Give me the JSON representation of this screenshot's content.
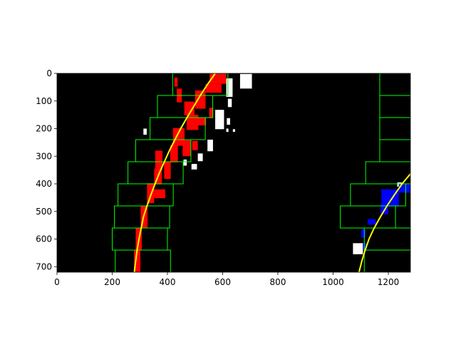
{
  "colors": {
    "background": "#000000",
    "left_pixels": "#ff0000",
    "right_pixels": "#0000ff",
    "noise": "#ffffff",
    "windows": "#00ff00",
    "fit_line": "#ffff00",
    "figure": "#ffffff"
  },
  "chart_data": {
    "type": "scatter",
    "title": "",
    "xlabel": "",
    "ylabel": "",
    "xlim": [
      0,
      1280
    ],
    "ylim": [
      720,
      0
    ],
    "y_inverted": true,
    "grid": false,
    "x_ticks": [
      0,
      200,
      400,
      600,
      800,
      1000,
      1200
    ],
    "y_ticks": [
      0,
      100,
      200,
      300,
      400,
      500,
      600,
      700
    ],
    "left_windows": [
      {
        "x0": 419,
        "x1": 619,
        "y0": 0,
        "y1": 80
      },
      {
        "x0": 364,
        "x1": 564,
        "y0": 80,
        "y1": 160
      },
      {
        "x0": 337,
        "x1": 537,
        "y0": 160,
        "y1": 240
      },
      {
        "x0": 285,
        "x1": 485,
        "y0": 240,
        "y1": 320
      },
      {
        "x0": 257,
        "x1": 457,
        "y0": 320,
        "y1": 400
      },
      {
        "x0": 221,
        "x1": 421,
        "y0": 400,
        "y1": 480
      },
      {
        "x0": 208,
        "x1": 408,
        "y0": 480,
        "y1": 560
      },
      {
        "x0": 200,
        "x1": 400,
        "y0": 560,
        "y1": 640
      },
      {
        "x0": 211,
        "x1": 411,
        "y0": 640,
        "y1": 720
      }
    ],
    "right_windows": [
      {
        "x0": 1169,
        "x1": 1369,
        "y0": 0,
        "y1": 80
      },
      {
        "x0": 1169,
        "x1": 1369,
        "y0": 80,
        "y1": 160
      },
      {
        "x0": 1169,
        "x1": 1369,
        "y0": 160,
        "y1": 240
      },
      {
        "x0": 1169,
        "x1": 1369,
        "y0": 240,
        "y1": 320
      },
      {
        "x0": 1118,
        "x1": 1318,
        "y0": 320,
        "y1": 400
      },
      {
        "x0": 1063,
        "x1": 1263,
        "y0": 400,
        "y1": 480
      },
      {
        "x0": 1026,
        "x1": 1226,
        "y0": 480,
        "y1": 560
      },
      {
        "x0": 1113,
        "x1": 1313,
        "y0": 560,
        "y1": 640
      },
      {
        "x0": 1113,
        "x1": 1313,
        "y0": 640,
        "y1": 720
      }
    ],
    "left_fit_curve": [
      {
        "x": 573,
        "y": 0
      },
      {
        "x": 545,
        "y": 40
      },
      {
        "x": 519,
        "y": 80
      },
      {
        "x": 495,
        "y": 120
      },
      {
        "x": 471,
        "y": 160
      },
      {
        "x": 448,
        "y": 200
      },
      {
        "x": 427,
        "y": 240
      },
      {
        "x": 407,
        "y": 280
      },
      {
        "x": 389,
        "y": 320
      },
      {
        "x": 371,
        "y": 360
      },
      {
        "x": 355,
        "y": 400
      },
      {
        "x": 340,
        "y": 440
      },
      {
        "x": 326,
        "y": 480
      },
      {
        "x": 313,
        "y": 520
      },
      {
        "x": 305,
        "y": 560
      },
      {
        "x": 297,
        "y": 600
      },
      {
        "x": 290,
        "y": 640
      },
      {
        "x": 285,
        "y": 680
      },
      {
        "x": 280,
        "y": 720
      }
    ],
    "right_fit_curve": [
      {
        "x": 1280,
        "y": 364
      },
      {
        "x": 1250,
        "y": 400
      },
      {
        "x": 1222,
        "y": 440
      },
      {
        "x": 1195,
        "y": 480
      },
      {
        "x": 1171,
        "y": 520
      },
      {
        "x": 1149,
        "y": 560
      },
      {
        "x": 1130,
        "y": 600
      },
      {
        "x": 1116,
        "y": 640
      },
      {
        "x": 1104,
        "y": 680
      },
      {
        "x": 1094,
        "y": 720
      }
    ],
    "left_lane_pixels": [
      {
        "x0": 553,
        "x1": 613,
        "y0": 0,
        "y1": 38
      },
      {
        "x0": 538,
        "x1": 596,
        "y0": 38,
        "y1": 70
      },
      {
        "x0": 425,
        "x1": 437,
        "y0": 15,
        "y1": 48
      },
      {
        "x0": 434,
        "x1": 452,
        "y0": 55,
        "y1": 105
      },
      {
        "x0": 500,
        "x1": 538,
        "y0": 62,
        "y1": 128
      },
      {
        "x0": 461,
        "x1": 498,
        "y0": 102,
        "y1": 152
      },
      {
        "x0": 551,
        "x1": 566,
        "y0": 125,
        "y1": 162
      },
      {
        "x0": 470,
        "x1": 512,
        "y0": 150,
        "y1": 205
      },
      {
        "x0": 510,
        "x1": 540,
        "y0": 160,
        "y1": 188
      },
      {
        "x0": 420,
        "x1": 462,
        "y0": 198,
        "y1": 262
      },
      {
        "x0": 455,
        "x1": 484,
        "y0": 242,
        "y1": 300
      },
      {
        "x0": 490,
        "x1": 510,
        "y0": 245,
        "y1": 278
      },
      {
        "x0": 410,
        "x1": 438,
        "y0": 260,
        "y1": 322
      },
      {
        "x0": 356,
        "x1": 382,
        "y0": 280,
        "y1": 350
      },
      {
        "x0": 388,
        "x1": 412,
        "y0": 320,
        "y1": 382
      },
      {
        "x0": 352,
        "x1": 380,
        "y0": 345,
        "y1": 402
      },
      {
        "x0": 326,
        "x1": 352,
        "y0": 398,
        "y1": 470
      },
      {
        "x0": 352,
        "x1": 392,
        "y0": 420,
        "y1": 452
      },
      {
        "x0": 303,
        "x1": 328,
        "y0": 480,
        "y1": 560
      },
      {
        "x0": 285,
        "x1": 307,
        "y0": 560,
        "y1": 640
      },
      {
        "x0": 279,
        "x1": 302,
        "y0": 640,
        "y1": 720
      }
    ],
    "right_lane_pixels": [
      {
        "x0": 1238,
        "x1": 1278,
        "y0": 402,
        "y1": 432
      },
      {
        "x0": 1175,
        "x1": 1238,
        "y0": 420,
        "y1": 482
      },
      {
        "x0": 1172,
        "x1": 1200,
        "y0": 472,
        "y1": 510
      },
      {
        "x0": 1125,
        "x1": 1155,
        "y0": 528,
        "y1": 548
      },
      {
        "x0": 1102,
        "x1": 1117,
        "y0": 565,
        "y1": 595
      },
      {
        "x0": 1108,
        "x1": 1122,
        "y0": 615,
        "y1": 640
      }
    ],
    "noise_pixels": [
      {
        "x0": 663,
        "x1": 706,
        "y0": 2,
        "y1": 55
      },
      {
        "x0": 613,
        "x1": 636,
        "y0": 18,
        "y1": 85
      },
      {
        "x0": 619,
        "x1": 633,
        "y0": 92,
        "y1": 122
      },
      {
        "x0": 573,
        "x1": 605,
        "y0": 132,
        "y1": 202
      },
      {
        "x0": 615,
        "x1": 627,
        "y0": 162,
        "y1": 186
      },
      {
        "x0": 613,
        "x1": 621,
        "y0": 200,
        "y1": 212
      },
      {
        "x0": 637,
        "x1": 645,
        "y0": 202,
        "y1": 212
      },
      {
        "x0": 545,
        "x1": 565,
        "y0": 240,
        "y1": 282
      },
      {
        "x0": 510,
        "x1": 528,
        "y0": 290,
        "y1": 318
      },
      {
        "x0": 458,
        "x1": 470,
        "y0": 312,
        "y1": 334
      },
      {
        "x0": 487,
        "x1": 507,
        "y0": 328,
        "y1": 348
      },
      {
        "x0": 313,
        "x1": 325,
        "y0": 200,
        "y1": 222
      },
      {
        "x0": 1072,
        "x1": 1108,
        "y0": 615,
        "y1": 655
      },
      {
        "x0": 1232,
        "x1": 1250,
        "y0": 395,
        "y1": 410
      }
    ]
  }
}
